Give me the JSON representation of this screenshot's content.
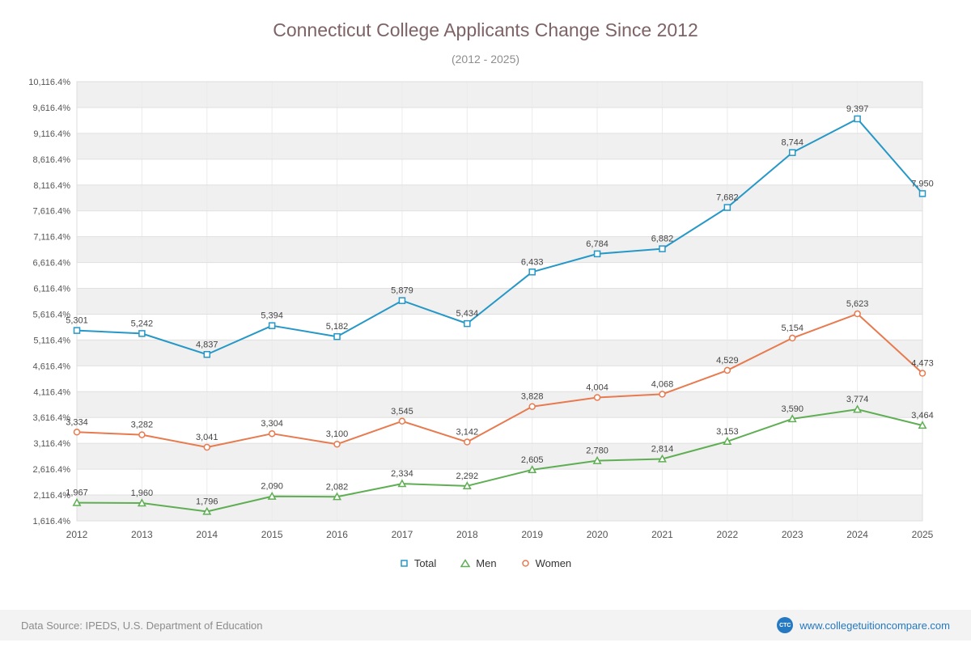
{
  "footer": {
    "data_source": "Data Source: IPEDS, U.S. Department of Education",
    "site_label": "www.collegetuitioncompare.com",
    "logo_text": "CTC"
  },
  "chart_data": {
    "type": "line",
    "title": "Connecticut College Applicants Change Since 2012",
    "subtitle": "(2012 - 2025)",
    "x": [
      2012,
      2013,
      2014,
      2015,
      2016,
      2017,
      2018,
      2019,
      2020,
      2021,
      2022,
      2023,
      2024,
      2025
    ],
    "xlabel": "",
    "ylabel": "",
    "grid": true,
    "legend_position": "bottom",
    "y_axis": {
      "min": 1616.4,
      "max": 10116.4,
      "step": 500,
      "tick_labels": [
        "1,616.4%",
        "2,116.4%",
        "2,616.4%",
        "3,116.4%",
        "3,616.4%",
        "4,116.4%",
        "4,616.4%",
        "5,116.4%",
        "5,616.4%",
        "6,116.4%",
        "6,616.4%",
        "7,116.4%",
        "7,616.4%",
        "8,116.4%",
        "8,616.4%",
        "9,116.4%",
        "9,616.4%",
        "10,116.4%"
      ]
    },
    "series": [
      {
        "name": "Total",
        "color": "#2598c7",
        "marker": "square",
        "values": [
          5301,
          5242,
          4837,
          5394,
          5182,
          5879,
          5434,
          6433,
          6784,
          6882,
          7682,
          8744,
          9397,
          7950
        ]
      },
      {
        "name": "Men",
        "color": "#5fae54",
        "marker": "triangle",
        "values": [
          1967,
          1960,
          1796,
          2090,
          2082,
          2334,
          2292,
          2605,
          2780,
          2814,
          3153,
          3590,
          3774,
          3464
        ]
      },
      {
        "name": "Women",
        "color": "#e87a4f",
        "marker": "circle",
        "values": [
          3334,
          3282,
          3041,
          3304,
          3100,
          3545,
          3142,
          3828,
          4004,
          4068,
          4529,
          5154,
          5623,
          4473
        ]
      }
    ]
  }
}
